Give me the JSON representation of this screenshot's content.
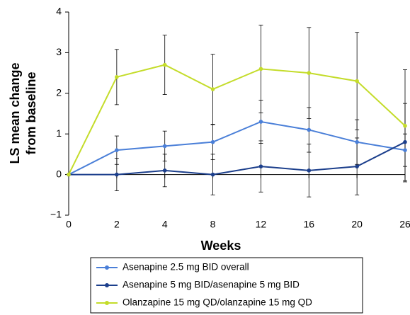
{
  "chart_data": {
    "type": "line",
    "x_label": "Weeks",
    "y_label": [
      "LS mean change",
      "from baseline"
    ],
    "categories": [
      "0",
      "2",
      "4",
      "8",
      "12",
      "16",
      "20",
      "26"
    ],
    "ylim": [
      -1,
      4
    ],
    "yticks": [
      {
        "value": -1,
        "label": "−1"
      },
      0,
      1,
      2,
      3,
      4
    ],
    "series": [
      {
        "name": "Asenapine 2.5 mg BID overall",
        "color": "#4a7fd8",
        "values": [
          0,
          0.6,
          0.7,
          0.8,
          1.3,
          1.1,
          0.8,
          0.6
        ],
        "errors": [
          0,
          0.35,
          0.37,
          0.43,
          0.53,
          0.55,
          0.55,
          0.4
        ]
      },
      {
        "name": "Asenapine 5 mg BID/asenapine 5 mg BID",
        "color": "#1c3f8c",
        "values": [
          0,
          0,
          0.1,
          0,
          0.2,
          0.1,
          0.2,
          0.8
        ],
        "errors": [
          0,
          0.4,
          0.4,
          0.5,
          0.63,
          0.65,
          0.7,
          0.95
        ]
      },
      {
        "name": "Olanzapine 15 mg QD/olanzapine 15 mg QD",
        "color": "#c4dc2a",
        "values": [
          0,
          2.4,
          2.7,
          2.1,
          2.6,
          2.5,
          2.3,
          1.2
        ],
        "errors": [
          0,
          0.68,
          0.73,
          0.86,
          1.08,
          1.12,
          1.2,
          1.38
        ]
      }
    ]
  }
}
